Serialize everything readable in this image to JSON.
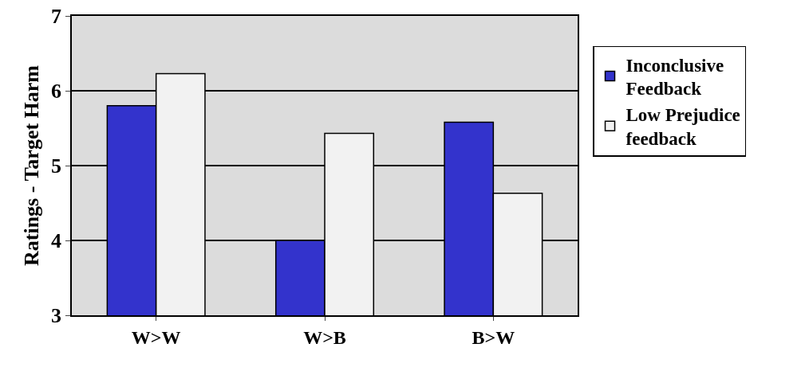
{
  "chart_data": {
    "type": "bar",
    "ylabel": "Ratings - Target Harm",
    "categories": [
      "W>W",
      "W>B",
      "B>W"
    ],
    "series": [
      {
        "name": "Inconclusive Feedback",
        "color": "#3333cc",
        "values": [
          5.8,
          4.0,
          5.58
        ]
      },
      {
        "name": "Low Prejudice feedback",
        "color": "#f2f2f2",
        "values": [
          6.23,
          5.43,
          4.63
        ]
      }
    ],
    "ylim": [
      3,
      7
    ],
    "yticks": [
      3,
      4,
      5,
      6,
      7
    ],
    "grid": "y",
    "legend": "right"
  }
}
